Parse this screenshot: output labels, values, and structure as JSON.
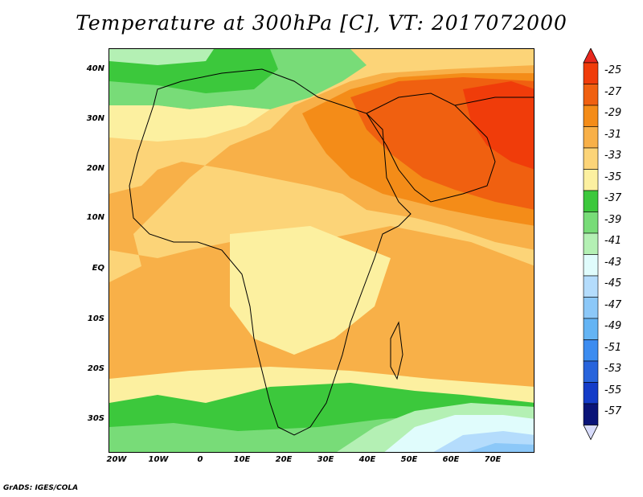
{
  "title": "Temperature at 300hPa [C], VT: 2017072000",
  "footer": "GrADS: IGES/COLA",
  "chart_data": {
    "type": "heatmap",
    "title": "Temperature at 300hPa [C], VT: 2017072000",
    "variable": "Temperature at 300hPa",
    "units": "C",
    "valid_time": "2017072000",
    "projection": "latlon",
    "xlim": [
      -22,
      80
    ],
    "ylim": [
      -37,
      45
    ],
    "lat_ticks": [
      "40N",
      "30N",
      "20N",
      "10N",
      "EQ",
      "10S",
      "20S",
      "30S"
    ],
    "lon_ticks": [
      "20W",
      "10W",
      "0",
      "10E",
      "20E",
      "30E",
      "40E",
      "50E",
      "60E",
      "70E"
    ],
    "legend": {
      "placement": "right",
      "labels": [
        "-25",
        "-27",
        "-29",
        "-31",
        "-33",
        "-35",
        "-37",
        "-39",
        "-41",
        "-43",
        "-45",
        "-47",
        "-49",
        "-51",
        "-53",
        "-55",
        "-57"
      ],
      "colors": [
        "#f03c0a",
        "#f06010",
        "#f48c18",
        "#f8b048",
        "#fcd478",
        "#fcf0a0",
        "#3cc83c",
        "#78dc78",
        "#b4f0b4",
        "#e0fcfc",
        "#b4dcfc",
        "#8cc8f8",
        "#64b4f4",
        "#3c8cf0",
        "#2864dc",
        "#143cc8",
        "#0a1478"
      ],
      "top_color": "#e8281e",
      "bottom_color": "#d8dcfc"
    },
    "grid": false
  }
}
